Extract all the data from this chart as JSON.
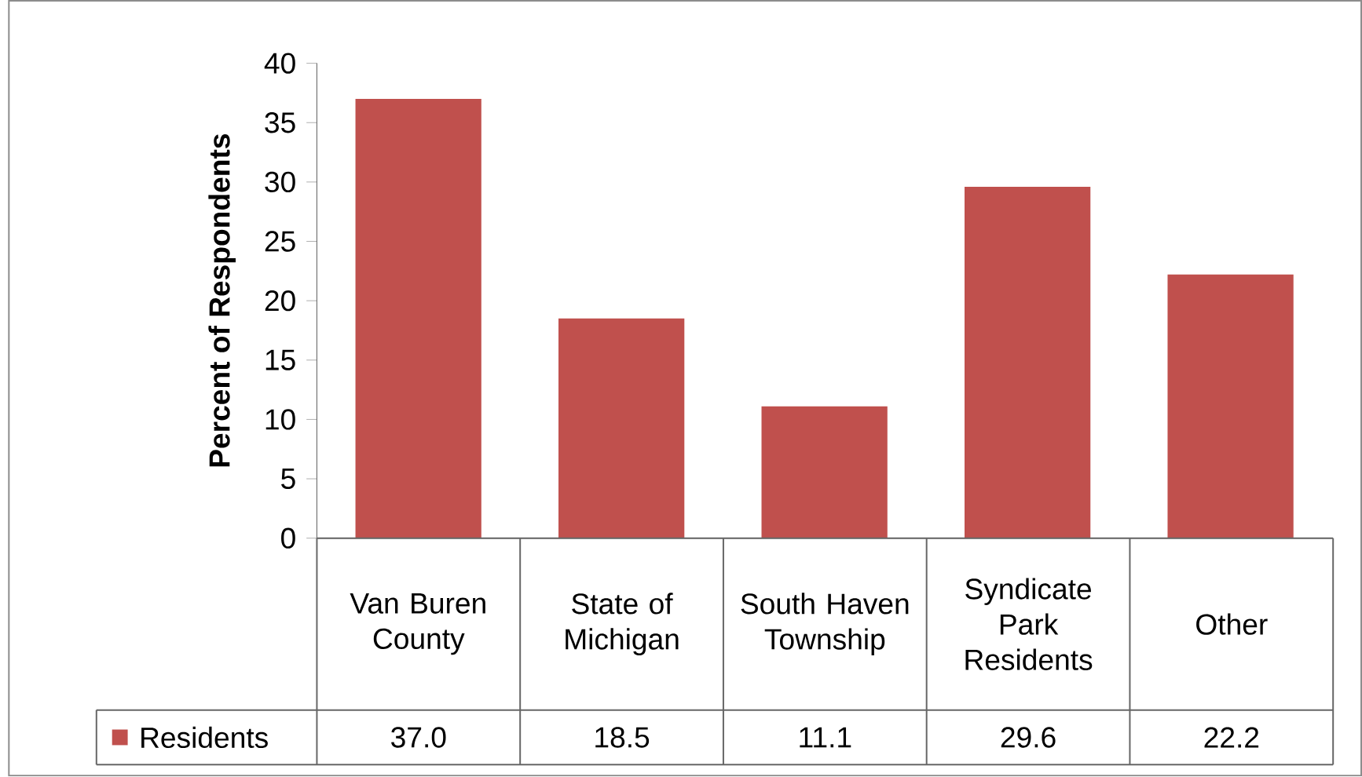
{
  "chart_data": {
    "type": "bar",
    "ylabel": "Percent of Respondents",
    "categories": [
      "Van Buren County",
      "State of Michigan",
      "South Haven Township",
      "Syndicate Park Residents",
      "Other"
    ],
    "series": [
      {
        "name": "Residents",
        "color": "#c0504d",
        "values": [
          37.0,
          18.5,
          11.1,
          29.6,
          22.2
        ],
        "value_labels": [
          "37.0",
          "18.5",
          "11.1",
          "29.6",
          "22.2"
        ]
      }
    ],
    "ylim": [
      0,
      40
    ],
    "yticks": [
      0,
      5,
      10,
      15,
      20,
      25,
      30,
      35,
      40
    ],
    "legend": "bottom"
  }
}
